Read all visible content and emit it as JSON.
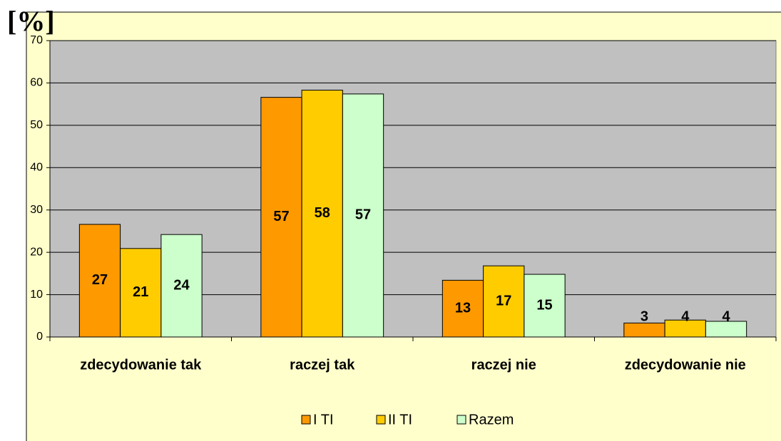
{
  "chart_data": {
    "type": "bar",
    "title": "[%]",
    "categories": [
      "zdecydowanie tak",
      "raczej tak",
      "raczej nie",
      "zdecydowanie nie"
    ],
    "series": [
      {
        "name": "I TI",
        "color": "#ff9900",
        "values": [
          26.6,
          56.6,
          13.4,
          3.3
        ],
        "value_labels": [
          "27",
          "57",
          "13",
          "3"
        ]
      },
      {
        "name": "II TI",
        "color": "#ffcc00",
        "values": [
          20.9,
          58.3,
          16.8,
          4.0
        ],
        "value_labels": [
          "21",
          "58",
          "17",
          "4"
        ]
      },
      {
        "name": "Razem",
        "color": "#ccffcc",
        "values": [
          24.2,
          57.4,
          14.8,
          3.7
        ],
        "value_labels": [
          "24",
          "57",
          "15",
          "4"
        ]
      }
    ],
    "ylim": [
      0,
      70
    ],
    "yticks": [
      0,
      10,
      20,
      30,
      40,
      50,
      60,
      70
    ],
    "grid": true,
    "legend": "bottom"
  }
}
